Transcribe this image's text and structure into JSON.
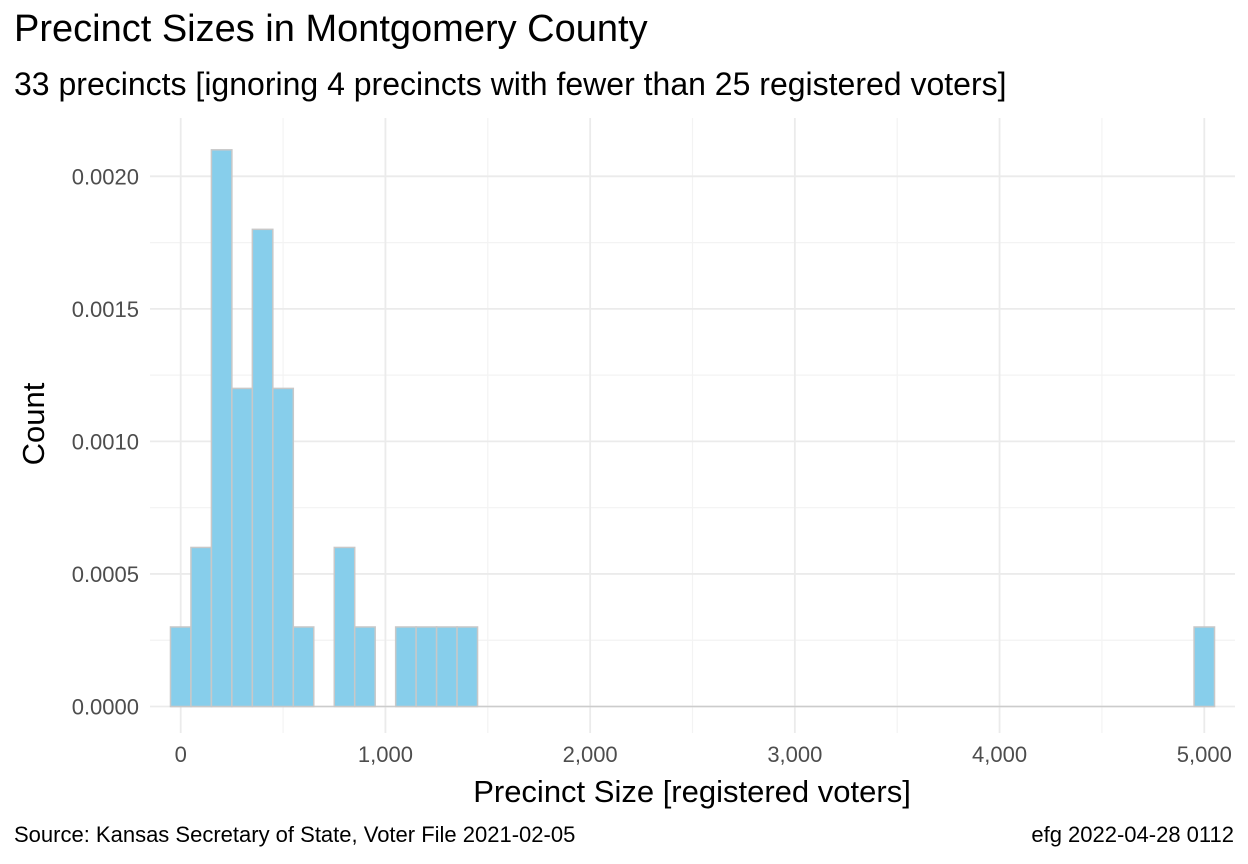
{
  "title": "Precinct Sizes in Montgomery County",
  "subtitle": "33 precincts [ignoring 4 precincts with fewer than 25 registered voters]",
  "caption_left": "Source:  Kansas Secretary of State, Voter File  2021-02-05",
  "caption_right": "efg 2022-04-28 0112",
  "colors": {
    "bar_fill": "#87ceeb",
    "bar_stroke": "#c8c8c8",
    "grid_major": "#ebebeb",
    "grid_minor": "#f3f3f3",
    "baseline": "#cccccc"
  },
  "chart_data": {
    "type": "bar",
    "xlabel": "Precinct Size [registered voters]",
    "ylabel": "Count",
    "xlim": [
      -150,
      5150
    ],
    "ylim": [
      -0.0001,
      0.00222
    ],
    "bin_width": 100,
    "x_ticks": [
      0,
      1000,
      2000,
      3000,
      4000,
      5000
    ],
    "x_tick_labels": [
      "0",
      "1,000",
      "2,000",
      "3,000",
      "4,000",
      "5,000"
    ],
    "y_ticks": [
      0,
      0.0005,
      0.001,
      0.0015,
      0.002
    ],
    "y_tick_labels": [
      "0.0000",
      "0.0005",
      "0.0010",
      "0.0015",
      "0.0020"
    ],
    "grid": true,
    "bins": [
      {
        "x": 0,
        "y": 0.0003
      },
      {
        "x": 100,
        "y": 0.0006
      },
      {
        "x": 200,
        "y": 0.0021
      },
      {
        "x": 300,
        "y": 0.0012
      },
      {
        "x": 400,
        "y": 0.0018
      },
      {
        "x": 500,
        "y": 0.0012
      },
      {
        "x": 600,
        "y": 0.0003
      },
      {
        "x": 800,
        "y": 0.0006
      },
      {
        "x": 900,
        "y": 0.0003
      },
      {
        "x": 1100,
        "y": 0.0003
      },
      {
        "x": 1200,
        "y": 0.0003
      },
      {
        "x": 1300,
        "y": 0.0003
      },
      {
        "x": 1400,
        "y": 0.0003
      },
      {
        "x": 5000,
        "y": 0.0003
      }
    ]
  }
}
